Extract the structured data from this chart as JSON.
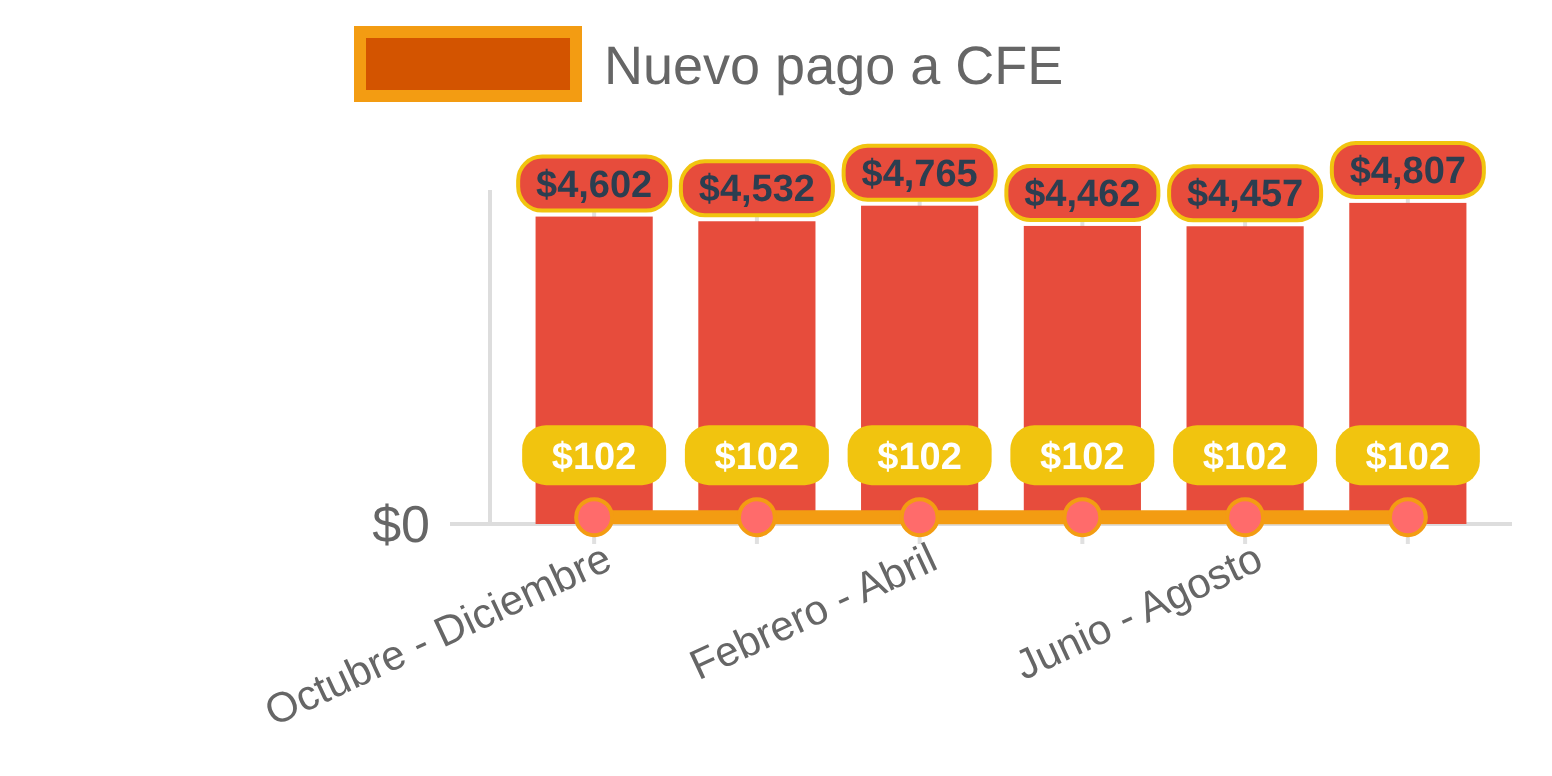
{
  "chart_data": {
    "type": "bar",
    "categories": [
      "Octubre - Diciembre",
      null,
      "Febrero - Abril",
      null,
      "Junio - Agosto",
      null
    ],
    "series": [
      {
        "color": "#e74c3c",
        "values": [
          4602,
          4532,
          4765,
          4462,
          4457,
          4807
        ],
        "value_labels": [
          "$4,602",
          "$4,532",
          "$4,765",
          "$4,462",
          "$4,457",
          "$4,807"
        ]
      },
      {
        "type": "line",
        "name": "Nuevo pago a CFE",
        "color": "#f39c12",
        "values": [
          102,
          102,
          102,
          102,
          102,
          102
        ],
        "value_labels": [
          "$102",
          "$102",
          "$102",
          "$102",
          "$102",
          "$102"
        ]
      }
    ],
    "ylim": [
      0,
      5000
    ],
    "annotations": [
      "$0"
    ],
    "legend": "top",
    "marker": "circle",
    "grid": "x"
  }
}
